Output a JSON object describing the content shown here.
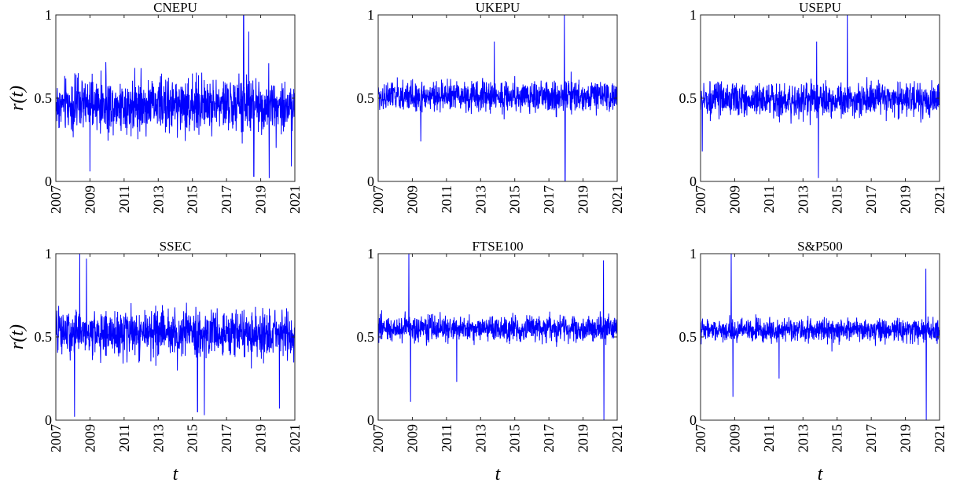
{
  "chart_data": [
    {
      "type": "line",
      "title": "CNEPU",
      "ylabel": "r(t)",
      "xlabel": "",
      "xlim": [
        2007,
        2021
      ],
      "ylim": [
        0,
        1
      ],
      "xticks": [
        "2007",
        "2009",
        "2011",
        "2013",
        "2015",
        "2017",
        "2019",
        "2021"
      ],
      "yticks": [
        "0",
        "0.5",
        "1"
      ],
      "series": [
        {
          "baseline": 0.46,
          "noise": 0.07,
          "spikes": [
            [
              2009.0,
              0.06
            ],
            [
              2018.0,
              1.0
            ],
            [
              2018.6,
              0.03
            ],
            [
              2019.5,
              0.02
            ],
            [
              2018.3,
              0.9
            ],
            [
              2020.8,
              0.09
            ]
          ]
        }
      ]
    },
    {
      "type": "line",
      "title": "UKEPU",
      "ylabel": "",
      "xlabel": "",
      "xlim": [
        2007,
        2021
      ],
      "ylim": [
        0,
        1
      ],
      "xticks": [
        "2007",
        "2009",
        "2011",
        "2013",
        "2015",
        "2017",
        "2019",
        "2021"
      ],
      "yticks": [
        "0",
        "0.5",
        "1"
      ],
      "series": [
        {
          "baseline": 0.51,
          "noise": 0.04,
          "spikes": [
            [
              2017.9,
              1.0
            ],
            [
              2017.95,
              0.0
            ],
            [
              2009.5,
              0.24
            ],
            [
              2013.8,
              0.84
            ]
          ]
        }
      ]
    },
    {
      "type": "line",
      "title": "USEPU",
      "ylabel": "",
      "xlabel": "",
      "xlim": [
        2007,
        2021
      ],
      "ylim": [
        0,
        1
      ],
      "xticks": [
        "2007",
        "2009",
        "2011",
        "2013",
        "2015",
        "2017",
        "2019",
        "2021"
      ],
      "yticks": [
        "0",
        "0.5",
        "1"
      ],
      "series": [
        {
          "baseline": 0.49,
          "noise": 0.045,
          "spikes": [
            [
              2015.6,
              1.0
            ],
            [
              2013.9,
              0.02
            ],
            [
              2013.8,
              0.84
            ],
            [
              2007.1,
              0.18
            ]
          ]
        }
      ]
    },
    {
      "type": "line",
      "title": "SSEC",
      "ylabel": "r(t)",
      "xlabel": "t",
      "xlim": [
        2007,
        2021
      ],
      "ylim": [
        0,
        1
      ],
      "xticks": [
        "2007",
        "2009",
        "2011",
        "2013",
        "2015",
        "2017",
        "2019",
        "2021"
      ],
      "yticks": [
        "0",
        "0.5",
        "1"
      ],
      "series": [
        {
          "baseline": 0.52,
          "noise": 0.06,
          "spikes": [
            [
              2008.4,
              1.0
            ],
            [
              2008.1,
              0.02
            ],
            [
              2015.7,
              0.03
            ],
            [
              2015.3,
              0.05
            ],
            [
              2020.1,
              0.07
            ],
            [
              2008.8,
              0.97
            ]
          ]
        }
      ]
    },
    {
      "type": "line",
      "title": "FTSE100",
      "ylabel": "",
      "xlabel": "t",
      "xlim": [
        2007,
        2021
      ],
      "ylim": [
        0,
        1
      ],
      "xticks": [
        "2007",
        "2009",
        "2011",
        "2013",
        "2015",
        "2017",
        "2019",
        "2021"
      ],
      "yticks": [
        "0",
        "0.5",
        "1"
      ],
      "series": [
        {
          "baseline": 0.55,
          "noise": 0.035,
          "spikes": [
            [
              2008.8,
              1.0
            ],
            [
              2008.9,
              0.11
            ],
            [
              2020.2,
              0.96
            ],
            [
              2020.22,
              0.0
            ],
            [
              2011.6,
              0.23
            ]
          ]
        }
      ]
    },
    {
      "type": "line",
      "title": "S&P500",
      "ylabel": "",
      "xlabel": "t",
      "xlim": [
        2007,
        2021
      ],
      "ylim": [
        0,
        1
      ],
      "xticks": [
        "2007",
        "2009",
        "2011",
        "2013",
        "2015",
        "2017",
        "2019",
        "2021"
      ],
      "yticks": [
        "0",
        "0.5",
        "1"
      ],
      "series": [
        {
          "baseline": 0.54,
          "noise": 0.03,
          "spikes": [
            [
              2008.8,
              1.0
            ],
            [
              2008.9,
              0.14
            ],
            [
              2020.2,
              0.91
            ],
            [
              2020.22,
              0.0
            ],
            [
              2011.6,
              0.25
            ]
          ]
        }
      ]
    }
  ],
  "colors": {
    "line": "#0000ff",
    "axes": "#262626"
  }
}
